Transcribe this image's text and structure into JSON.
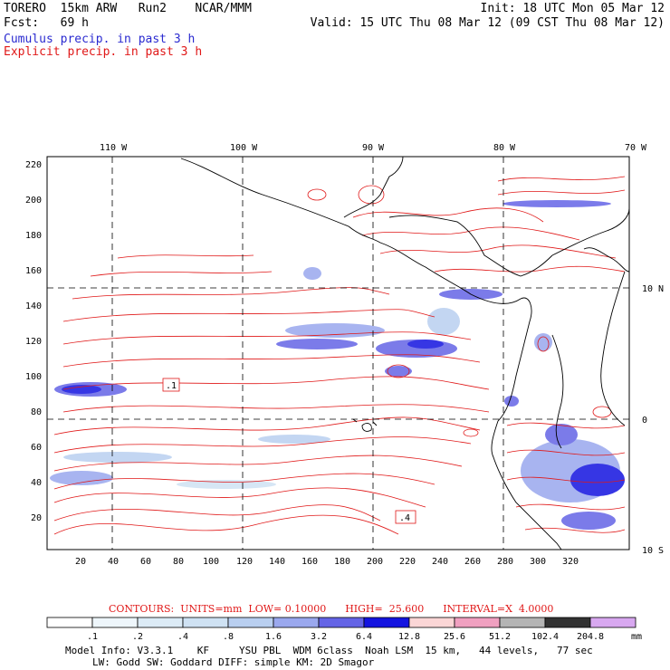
{
  "header": {
    "model": "TORERO  15km ARW   Run2    NCAR/MMM",
    "init": "Init: 18 UTC Mon 05 Mar 12",
    "fcst": "Fcst:   69 h",
    "valid": "Valid: 15 UTC Thu 08 Mar 12 (09 CST Thu 08 Mar 12)",
    "cumulus": "Cumulus precip. in past 3 h",
    "explicit": "Explicit precip. in past 3 h"
  },
  "map": {
    "lon_labels": [
      "110 W",
      "100 W",
      "90 W",
      "80 W",
      "70 W"
    ],
    "lat_labels": [
      "10 N",
      "0",
      "10 S"
    ],
    "y_ticks": [
      "220",
      "200",
      "180",
      "160",
      "140",
      "120",
      "100",
      "80",
      "60",
      "40",
      "20"
    ],
    "x_ticks": [
      "20",
      "40",
      "60",
      "80",
      "100",
      "120",
      "140",
      "160",
      "180",
      "200",
      "220",
      "240",
      "260",
      "280",
      "300",
      "320"
    ],
    "box_labels": [
      ".1",
      ".4"
    ]
  },
  "contour_info": {
    "label": "CONTOURS:  UNITS=mm  LOW= 0.10000      HIGH=  25.600      INTERVAL=X  4.0000"
  },
  "colorbar": {
    "labels": [
      ".1",
      ".2",
      ".4",
      ".8",
      "1.6",
      "3.2",
      "6.4",
      "12.8",
      "25.6",
      "51.2",
      "102.4",
      "204.8"
    ],
    "unit": "mm",
    "colors": [
      "#ffffff",
      "#eef6fb",
      "#dcebf6",
      "#cfe2f3",
      "#b9cff0",
      "#9aa8ee",
      "#6464e6",
      "#1414e0",
      "#fbd6d6",
      "#f0a0c0",
      "#b4b4b4",
      "#323232",
      "#d8a8f0"
    ]
  },
  "model_info": {
    "line1": "Model Info: V3.3.1    KF     YSU PBL  WDM 6class  Noah LSM  15 km,   44 levels,   77 sec",
    "line2": "LW: Godd SW: Goddard DIFF: simple KM: 2D Smagor"
  }
}
